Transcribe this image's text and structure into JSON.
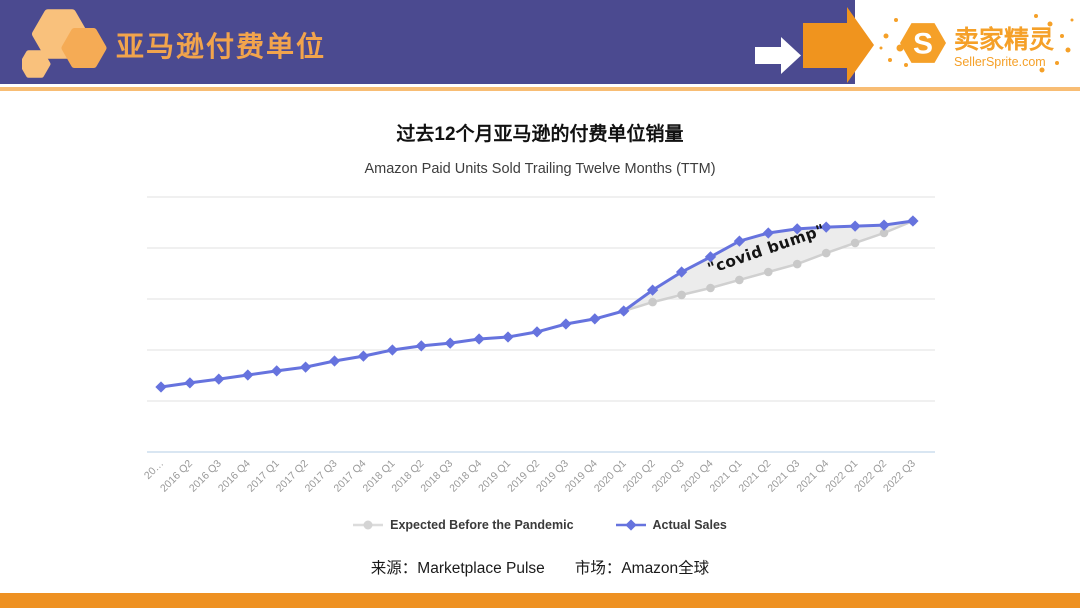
{
  "header": {
    "title": "亚马逊付费单位",
    "brand_cn": "卖家精灵",
    "brand_en": "SellerSprite.com"
  },
  "main": {
    "title": "过去12个月亚马逊的付费单位销量",
    "source": "来源：Marketplace Pulse",
    "market": "市场：Amazon全球"
  },
  "chart_data": {
    "type": "line",
    "title": "Amazon Paid Units Sold Trailing Twelve Months (TTM)",
    "annotation": "\"covid bump\"",
    "x_labels": [
      "20…",
      "2016 Q2",
      "2016 Q3",
      "2016 Q4",
      "2017 Q1",
      "2017 Q2",
      "2017 Q3",
      "2017 Q4",
      "2018 Q1",
      "2018 Q2",
      "2018 Q3",
      "2018 Q4",
      "2019 Q1",
      "2019 Q2",
      "2019 Q3",
      "2019 Q4",
      "2020 Q1",
      "2020 Q2",
      "2020 Q3",
      "2020 Q4",
      "2021 Q1",
      "2021 Q2",
      "2021 Q3",
      "2021 Q4",
      "2022 Q1",
      "2022 Q2",
      "2022 Q3"
    ],
    "ylim": [
      0,
      100
    ],
    "y_unit": "relative index (y-axis unlabeled, gridlines every 20)",
    "grid": true,
    "legend_position": "bottom",
    "series": [
      {
        "name": "Expected Before the Pandemic",
        "color": "#d0d0d0",
        "marker": "circle",
        "start_index": 16,
        "values": [
          55.3,
          58.8,
          61.6,
          64.3,
          67.5,
          70.6,
          73.7,
          78.0,
          82.0,
          85.9,
          90.6
        ]
      },
      {
        "name": "Actual Sales",
        "color": "#6673de",
        "marker": "diamond",
        "start_index": 0,
        "values": [
          25.5,
          27.1,
          28.6,
          30.2,
          31.8,
          33.3,
          35.7,
          37.6,
          40.0,
          41.6,
          42.7,
          44.3,
          45.1,
          47.1,
          50.2,
          52.2,
          55.3,
          63.5,
          70.6,
          76.5,
          82.7,
          85.9,
          87.5,
          88.2,
          88.6,
          89.0,
          90.6
        ]
      }
    ]
  },
  "colors": {
    "header_purple": "#4b4a90",
    "accent_orange": "#f0941e",
    "rule_orange": "#f8bd74",
    "footer_orange": "#ee9122",
    "line_blue": "#6673de",
    "line_gray": "#d0d0d0",
    "bump_fill": "#ebebeb"
  }
}
